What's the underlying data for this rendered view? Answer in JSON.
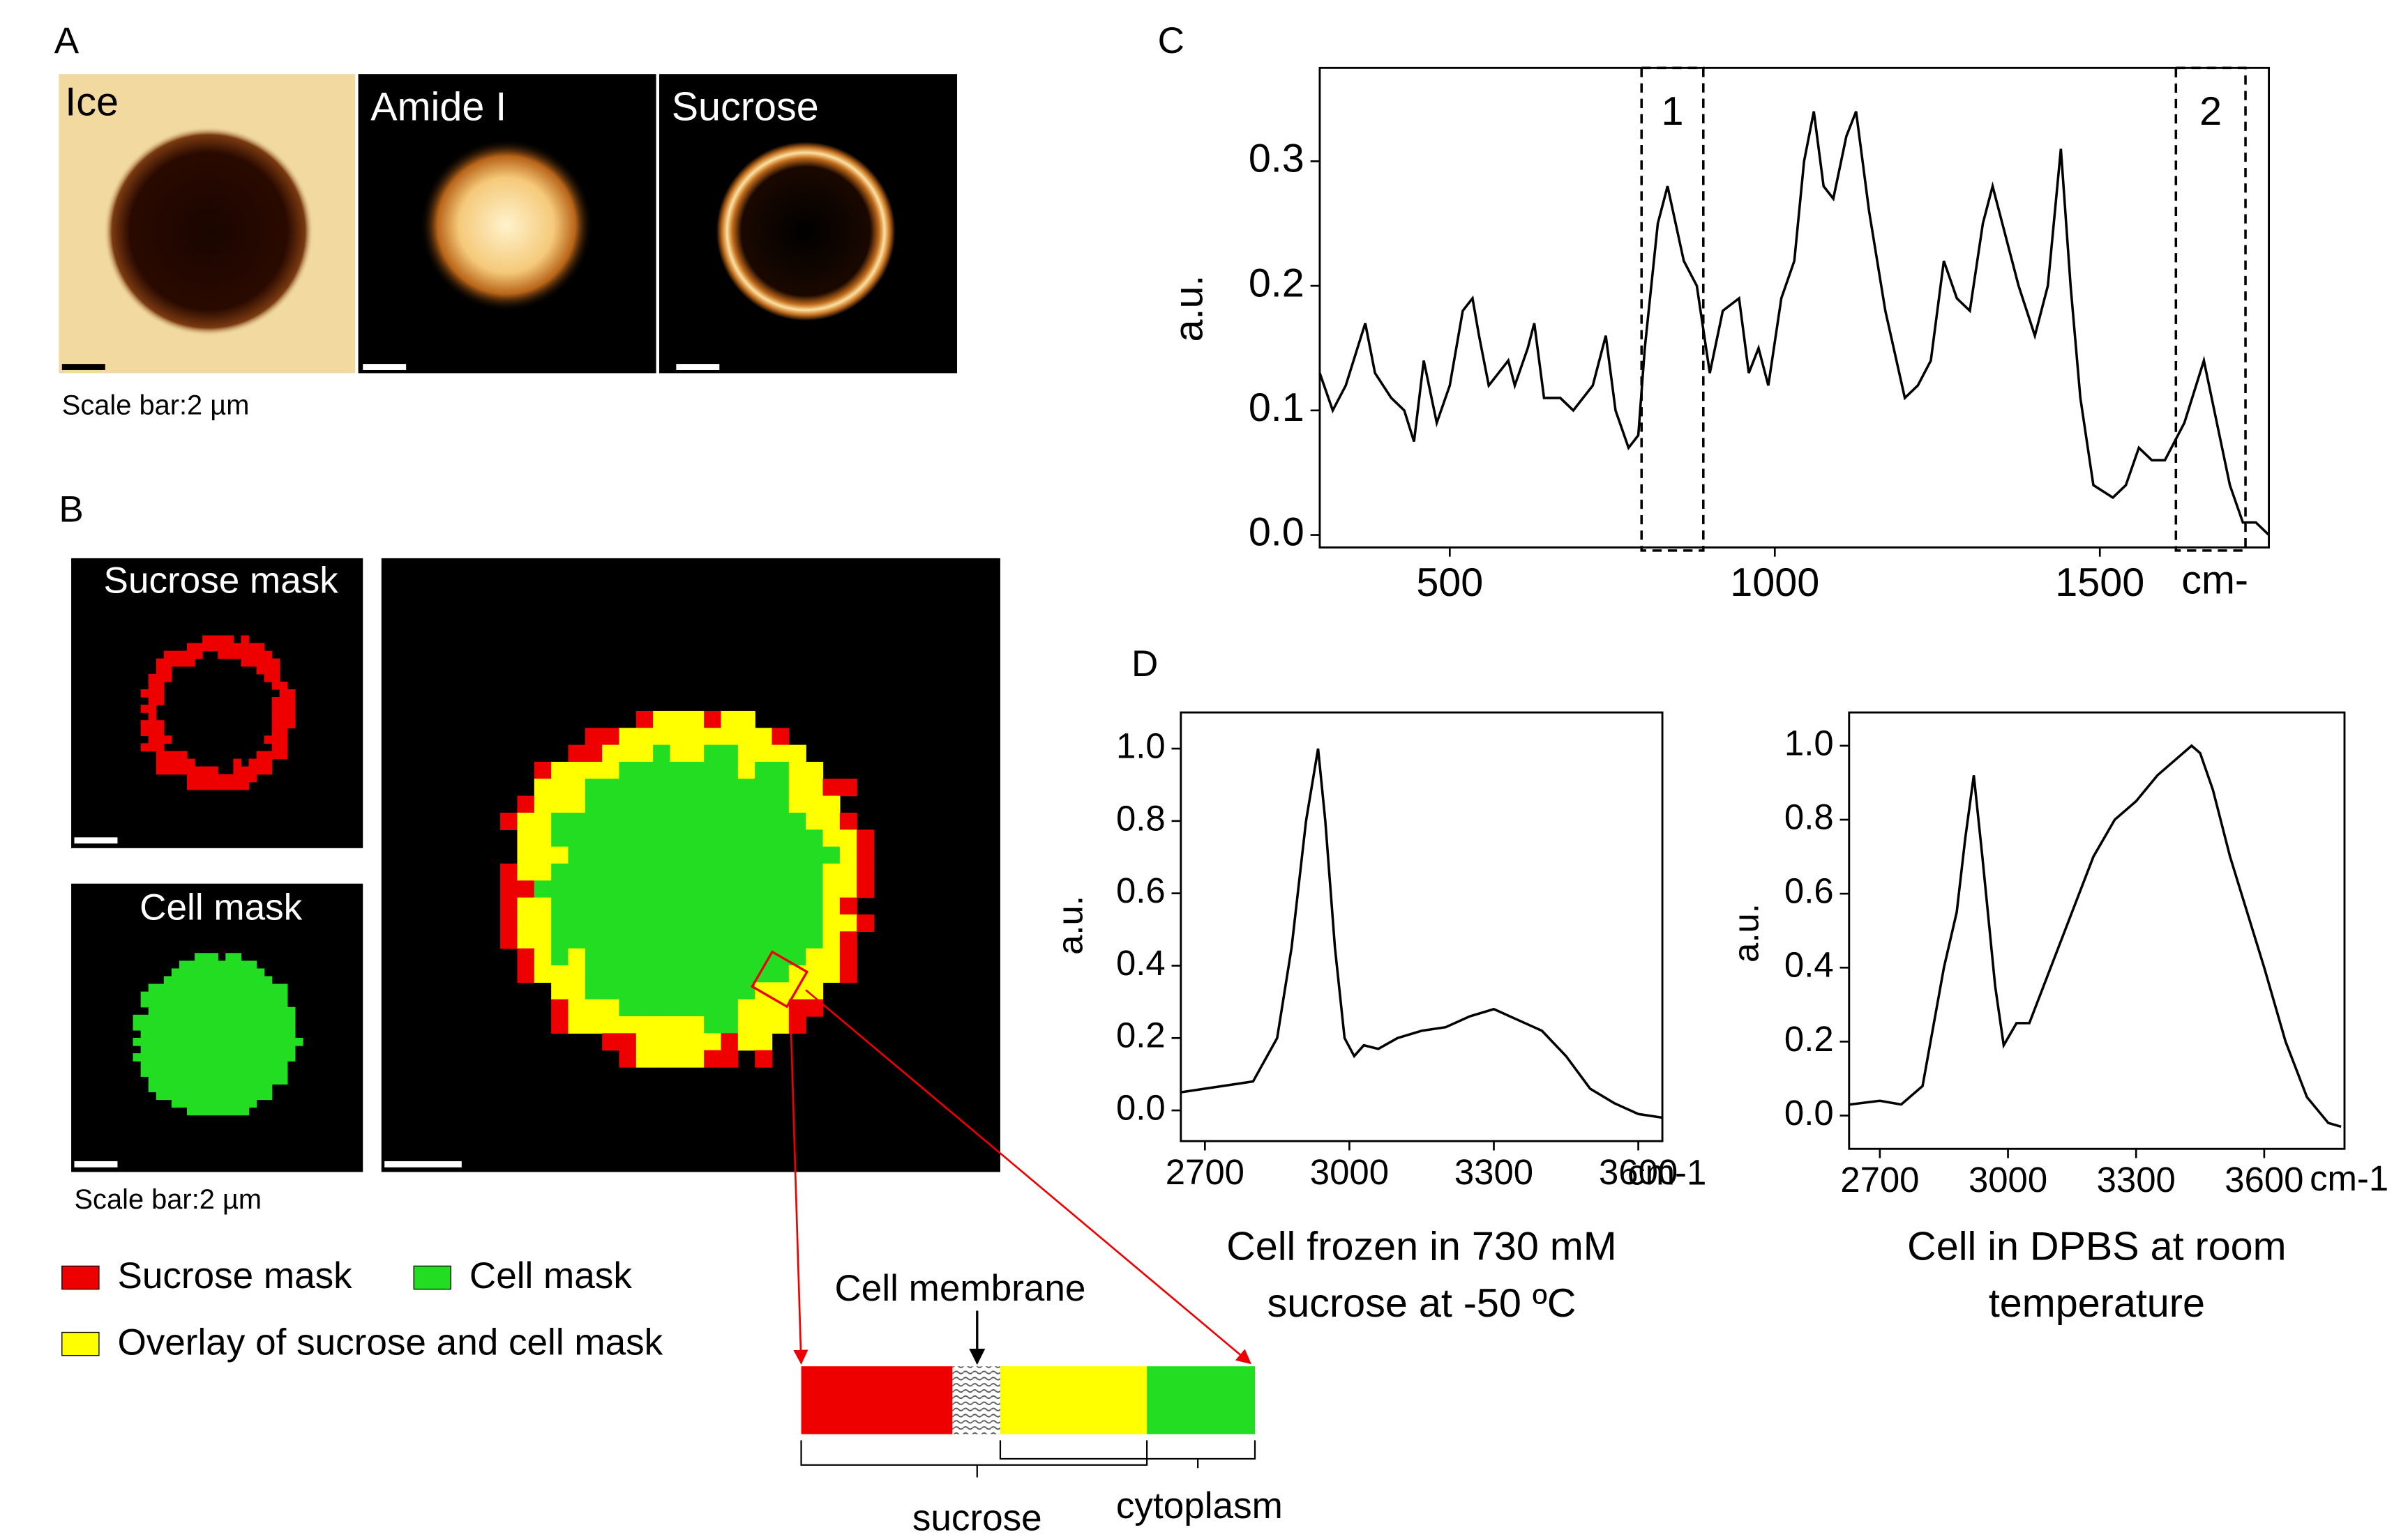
{
  "panels": {
    "A": {
      "label": "A",
      "images": [
        "Ice",
        "Amide I",
        "Sucrose"
      ],
      "scale_bar": "Scale bar:2 µm"
    },
    "B": {
      "label": "B",
      "images": [
        "Sucrose mask",
        "Cell mask"
      ],
      "scale_bar": "Scale bar:2 µm",
      "legend": [
        "Sucrose mask",
        "Cell mask",
        "Overlay of sucrose and cell mask"
      ],
      "schematic": {
        "membrane": "Cell membrane",
        "brackets": [
          "sucrose",
          "cytoplasm"
        ]
      }
    },
    "C": {
      "label": "C"
    },
    "D": {
      "label": "D"
    }
  },
  "chart_data": [
    {
      "type": "line",
      "x_label": "cm-",
      "y_label": "a.u.",
      "xlim": [
        300,
        1760
      ],
      "ylim": [
        -0.01,
        0.375
      ],
      "xticks": [
        500,
        1000,
        1500
      ],
      "yticks": [
        {
          "value": 0,
          "label": "0.0"
        },
        0.1,
        0.2,
        0.3
      ],
      "regions": [
        {
          "label": "1",
          "x": [
            795,
            890
          ]
        },
        {
          "label": "2",
          "x": [
            1617,
            1724
          ]
        }
      ],
      "x": [
        300,
        320,
        340,
        370,
        385,
        410,
        430,
        445,
        460,
        480,
        500,
        520,
        535,
        545,
        560,
        575,
        590,
        600,
        620,
        630,
        645,
        670,
        690,
        720,
        740,
        755,
        775,
        790,
        800,
        820,
        835,
        860,
        880,
        900,
        920,
        945,
        960,
        975,
        990,
        1010,
        1030,
        1045,
        1060,
        1075,
        1090,
        1110,
        1125,
        1145,
        1170,
        1200,
        1220,
        1240,
        1260,
        1280,
        1300,
        1320,
        1335,
        1350,
        1375,
        1400,
        1420,
        1440,
        1455,
        1470,
        1490,
        1520,
        1540,
        1560,
        1580,
        1600,
        1630,
        1660,
        1680,
        1700,
        1720,
        1740,
        1760
      ],
      "series": [
        {
          "color": "#000000",
          "values": [
            0.13,
            0.1,
            0.12,
            0.17,
            0.13,
            0.11,
            0.1,
            0.075,
            0.14,
            0.09,
            0.12,
            0.18,
            0.19,
            0.16,
            0.12,
            0.13,
            0.14,
            0.12,
            0.15,
            0.17,
            0.11,
            0.11,
            0.1,
            0.12,
            0.16,
            0.1,
            0.07,
            0.08,
            0.15,
            0.25,
            0.28,
            0.22,
            0.2,
            0.13,
            0.18,
            0.19,
            0.13,
            0.15,
            0.12,
            0.19,
            0.22,
            0.3,
            0.34,
            0.28,
            0.27,
            0.32,
            0.34,
            0.26,
            0.18,
            0.11,
            0.12,
            0.14,
            0.22,
            0.19,
            0.18,
            0.25,
            0.28,
            0.25,
            0.2,
            0.16,
            0.2,
            0.31,
            0.2,
            0.11,
            0.04,
            0.03,
            0.04,
            0.07,
            0.06,
            0.06,
            0.09,
            0.14,
            0.09,
            0.04,
            0.01,
            0.01,
            0.0
          ]
        }
      ]
    },
    {
      "type": "line",
      "x_label": "cm-1",
      "y_label": "a.u.",
      "caption": [
        "Cell frozen in 730 mM",
        "sucrose at -50 ºC"
      ],
      "xlim": [
        2650,
        3650
      ],
      "ylim": [
        -0.085,
        1.1
      ],
      "xticks": [
        2700,
        3000,
        3300,
        3600
      ],
      "yticks": [
        {
          "value": 0,
          "label": "0.0"
        },
        0.2,
        0.4,
        0.6,
        0.8,
        {
          "value": 1,
          "label": "1.0"
        }
      ],
      "x": [
        2650,
        2700,
        2750,
        2800,
        2850,
        2880,
        2910,
        2935,
        2950,
        2970,
        2990,
        3010,
        3030,
        3060,
        3100,
        3150,
        3200,
        3250,
        3300,
        3350,
        3400,
        3450,
        3500,
        3550,
        3600,
        3650
      ],
      "series": [
        {
          "color": "#000000",
          "values": [
            0.05,
            0.06,
            0.07,
            0.08,
            0.2,
            0.45,
            0.8,
            1.0,
            0.8,
            0.45,
            0.2,
            0.15,
            0.18,
            0.17,
            0.2,
            0.22,
            0.23,
            0.26,
            0.28,
            0.25,
            0.22,
            0.15,
            0.06,
            0.02,
            -0.01,
            -0.02
          ]
        }
      ]
    },
    {
      "type": "line",
      "x_label": "cm-1",
      "y_label": "a.u.",
      "caption": [
        "Cell in DPBS at room",
        "temperature"
      ],
      "xlim": [
        2628,
        3788
      ],
      "ylim": [
        -0.09,
        1.09
      ],
      "xticks": [
        2700,
        3000,
        3300,
        3600
      ],
      "yticks": [
        {
          "value": 0,
          "label": "0.0"
        },
        0.2,
        0.4,
        0.6,
        0.8,
        {
          "value": 1,
          "label": "1.0"
        }
      ],
      "x": [
        2630,
        2700,
        2750,
        2800,
        2850,
        2880,
        2900,
        2920,
        2940,
        2970,
        2990,
        3020,
        3050,
        3100,
        3150,
        3200,
        3250,
        3300,
        3350,
        3400,
        3430,
        3450,
        3480,
        3520,
        3560,
        3600,
        3650,
        3700,
        3750,
        3780
      ],
      "series": [
        {
          "color": "#000000",
          "values": [
            0.03,
            0.04,
            0.03,
            0.08,
            0.4,
            0.55,
            0.75,
            0.92,
            0.7,
            0.35,
            0.19,
            0.25,
            0.25,
            0.4,
            0.55,
            0.7,
            0.8,
            0.85,
            0.92,
            0.97,
            1.0,
            0.98,
            0.88,
            0.7,
            0.55,
            0.4,
            0.2,
            0.05,
            -0.02,
            -0.03
          ]
        }
      ]
    }
  ]
}
